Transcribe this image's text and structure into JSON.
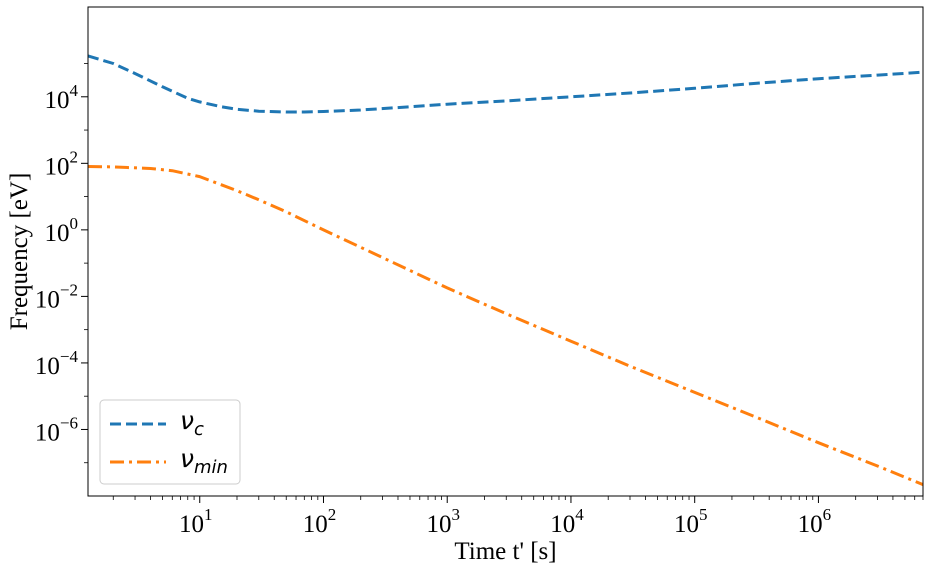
{
  "chart_data": {
    "type": "line",
    "title": "",
    "xlabel": "Time t' [s]",
    "ylabel": "Frequency [eV]",
    "xscale": "log",
    "yscale": "log",
    "xlim": [
      1.25,
      7000000
    ],
    "ylim": [
      1e-08,
      5000000
    ],
    "grid": false,
    "legend_position": "lower-left",
    "x_ticks": [
      {
        "value": 10,
        "base": "10",
        "exp": "1"
      },
      {
        "value": 100,
        "base": "10",
        "exp": "2"
      },
      {
        "value": 1000,
        "base": "10",
        "exp": "3"
      },
      {
        "value": 10000,
        "base": "10",
        "exp": "4"
      },
      {
        "value": 100000,
        "base": "10",
        "exp": "5"
      },
      {
        "value": 1000000,
        "base": "10",
        "exp": "6"
      }
    ],
    "y_ticks": [
      {
        "value": 1e-06,
        "base": "10",
        "exp": "−6"
      },
      {
        "value": 0.0001,
        "base": "10",
        "exp": "−4"
      },
      {
        "value": 0.01,
        "base": "10",
        "exp": "−2"
      },
      {
        "value": 1,
        "base": "10",
        "exp": "0"
      },
      {
        "value": 100,
        "base": "10",
        "exp": "2"
      },
      {
        "value": 10000,
        "base": "10",
        "exp": "4"
      }
    ],
    "series": [
      {
        "name": "ν_c",
        "legend_symbol": "ν",
        "legend_sub": "c",
        "color": "#1f77b4",
        "style": "dashed",
        "x": [
          1.25,
          2,
          3,
          5,
          8,
          10,
          15,
          20,
          30,
          50,
          70,
          100,
          200,
          500,
          1000,
          3000,
          10000,
          30000,
          100000,
          300000,
          1000000,
          3000000,
          7000000
        ],
        "y": [
          170000,
          100000,
          50000,
          20000,
          9000,
          7000,
          5000,
          4200,
          3700,
          3500,
          3500,
          3600,
          4000,
          5000,
          6000,
          7500,
          10000,
          13000,
          18000,
          25000,
          35000,
          45000,
          55000
        ]
      },
      {
        "name": "ν_min",
        "legend_symbol": "ν",
        "legend_sub": "min",
        "color": "#ff7f0e",
        "style": "dashdot",
        "x": [
          1.25,
          2,
          4,
          6,
          10,
          20,
          30,
          50,
          100,
          200,
          500,
          1000,
          3000,
          10000,
          30000,
          100000,
          300000,
          1000000,
          3000000,
          7000000
        ],
        "y": [
          80,
          78,
          70,
          60,
          40,
          15,
          8,
          3.5,
          1.0,
          0.3,
          0.06,
          0.018,
          0.003,
          0.00045,
          8e-05,
          1.3e-05,
          2.5e-06,
          4e-07,
          8e-08,
          2.2e-08
        ]
      }
    ]
  }
}
